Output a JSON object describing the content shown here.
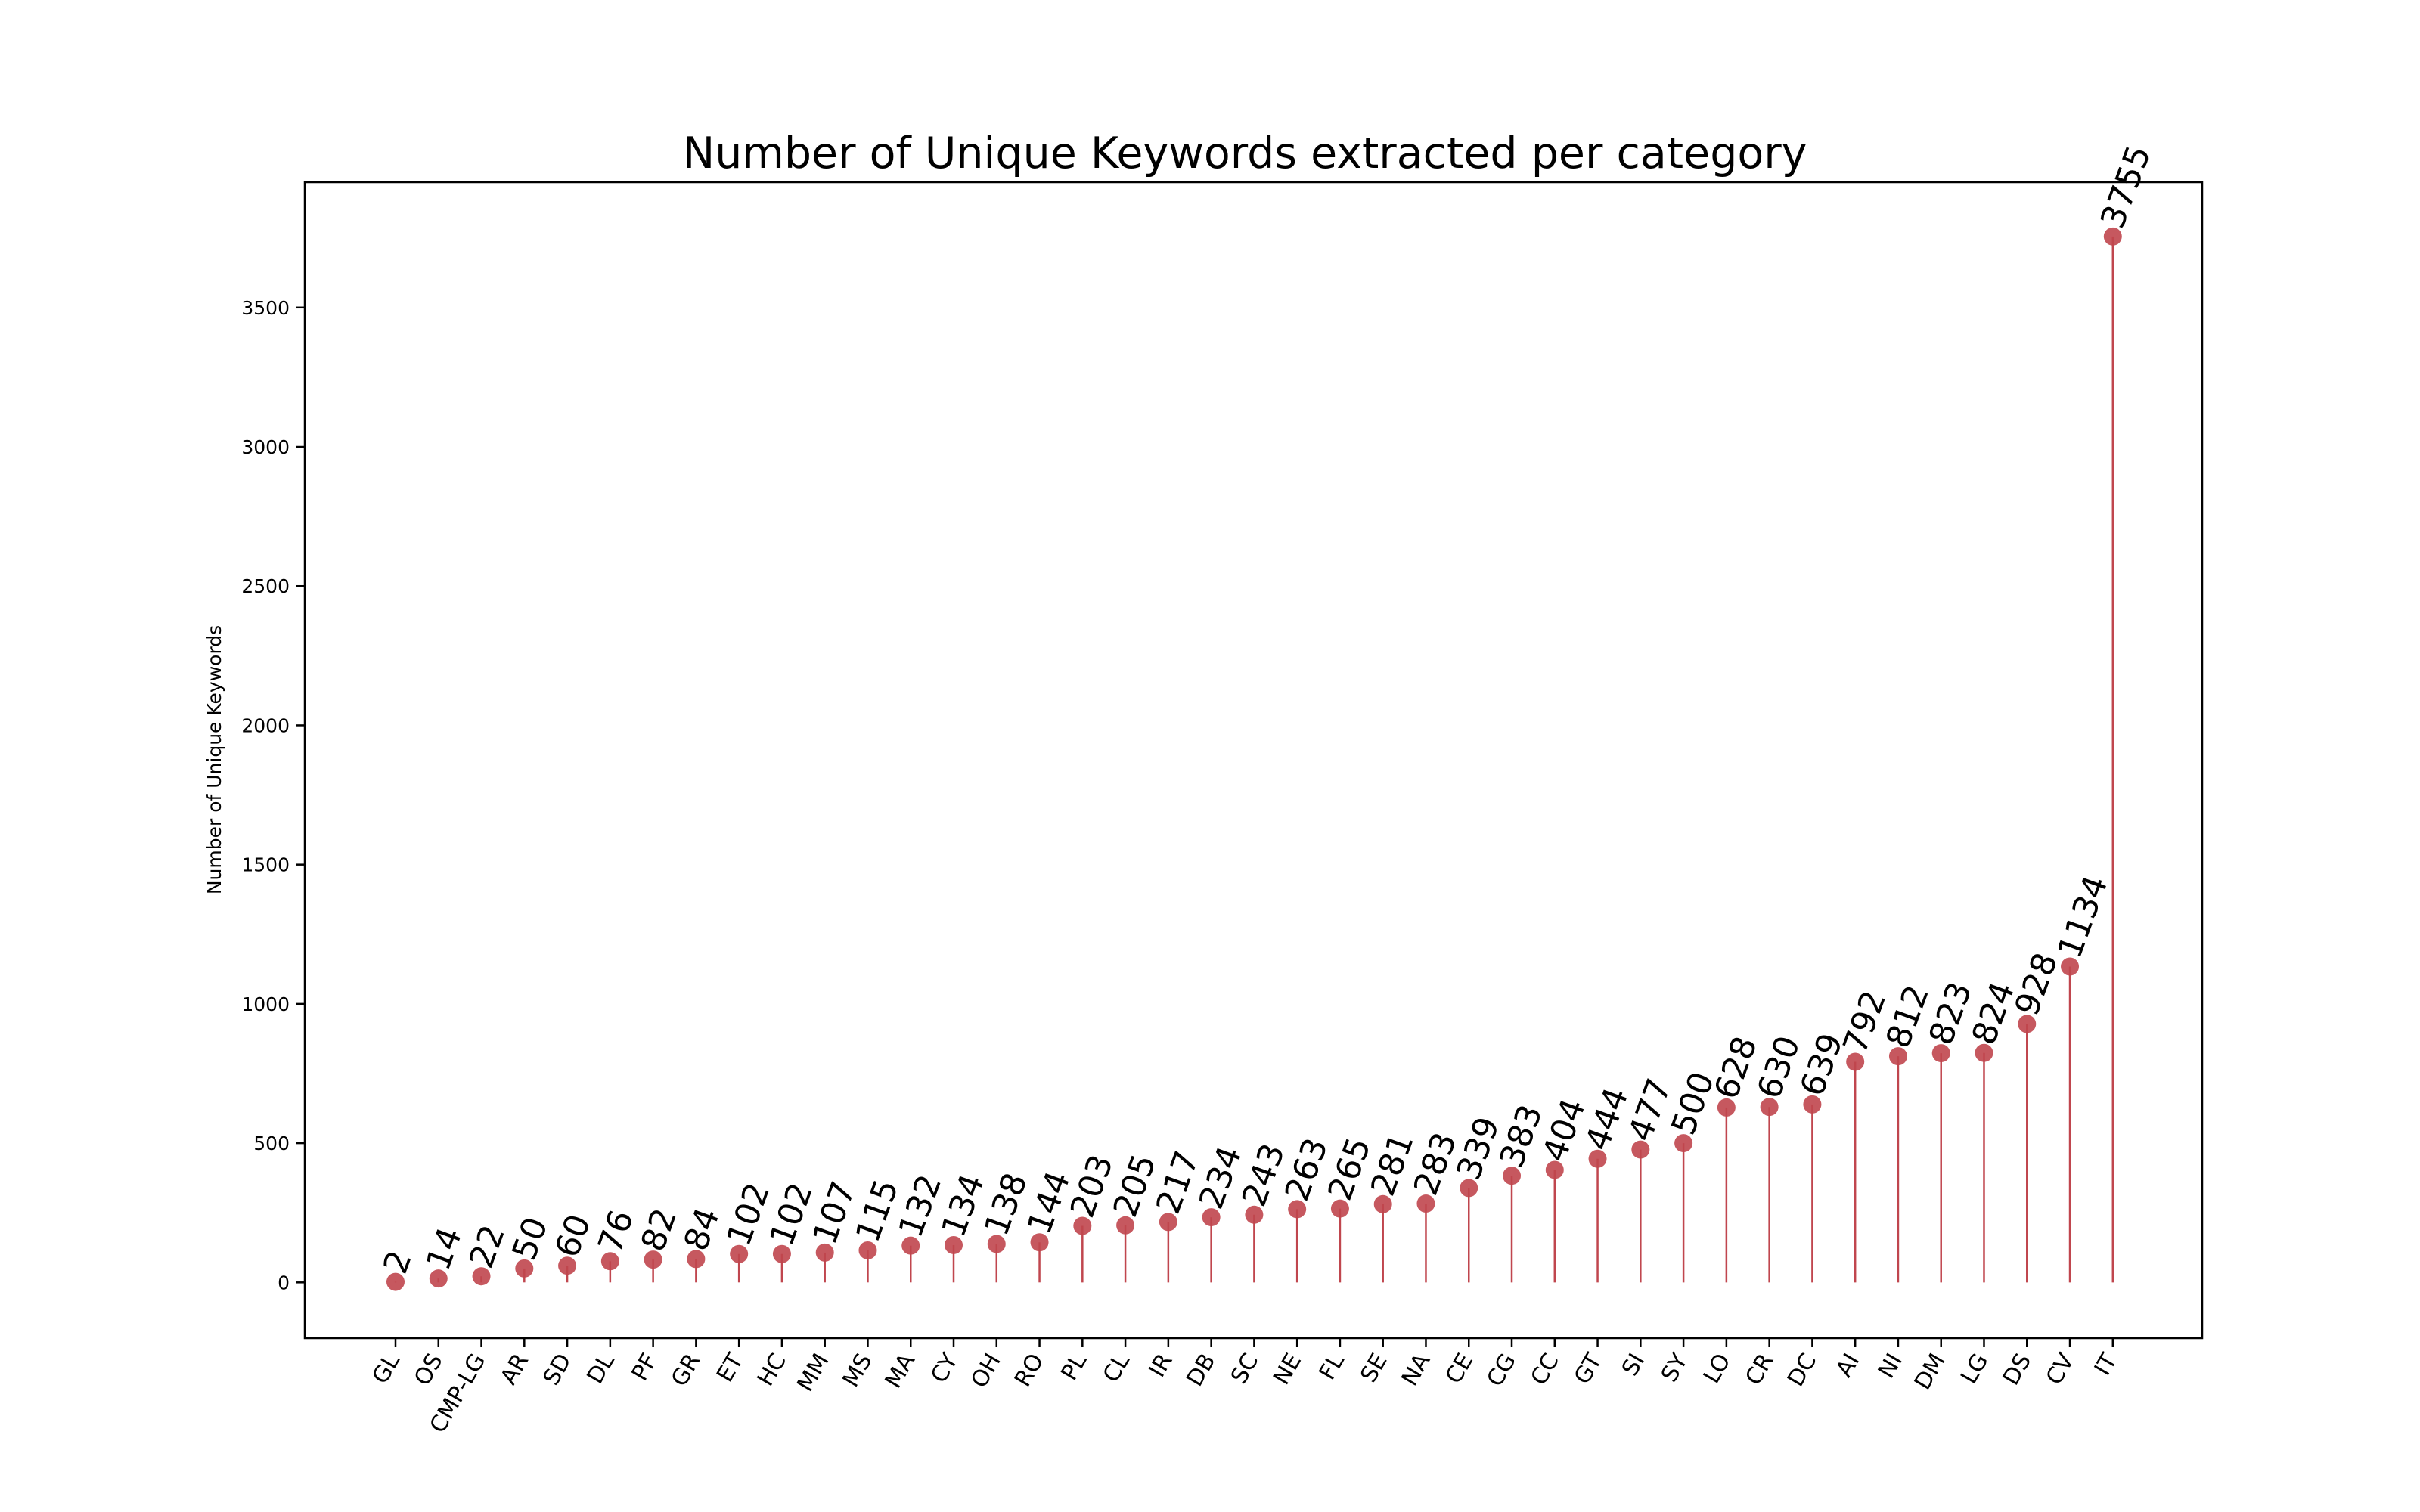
{
  "chart_data": {
    "type": "lollipop",
    "title": "Number of Unique Keywords extracted per category",
    "xlabel": "",
    "ylabel": "Number of Unique Keywords",
    "ylim": [
      -200,
      3950
    ],
    "yticks": [
      0,
      500,
      1000,
      1500,
      2000,
      2500,
      3000,
      3500
    ],
    "grid": false,
    "colors": {
      "stem": "#c0464e",
      "marker": "#c0464e"
    },
    "categories": [
      "GL",
      "OS",
      "CMP-LG",
      "AR",
      "SD",
      "DL",
      "PF",
      "GR",
      "ET",
      "HC",
      "MM",
      "MS",
      "MA",
      "CY",
      "OH",
      "RO",
      "PL",
      "CL",
      "IR",
      "DB",
      "SC",
      "NE",
      "FL",
      "SE",
      "NA",
      "CE",
      "CG",
      "CC",
      "GT",
      "SI",
      "SY",
      "LO",
      "CR",
      "DC",
      "AI",
      "NI",
      "DM",
      "LG",
      "DS",
      "CV",
      "IT"
    ],
    "values": [
      2,
      14,
      22,
      50,
      60,
      76,
      82,
      84,
      102,
      102,
      107,
      115,
      132,
      134,
      138,
      144,
      203,
      205,
      217,
      234,
      243,
      263,
      265,
      281,
      283,
      339,
      383,
      404,
      444,
      477,
      500,
      628,
      630,
      639,
      792,
      812,
      823,
      824,
      928,
      1134,
      3755
    ]
  }
}
